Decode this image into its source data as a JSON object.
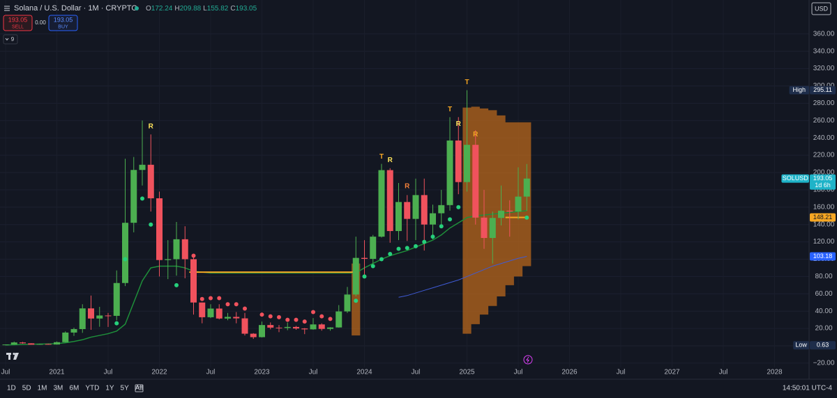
{
  "header": {
    "title": "Solana / U.S. Dollar · 1M · CRYPTO",
    "ohlc": [
      {
        "k": "O",
        "v": "172.24"
      },
      {
        "k": "H",
        "v": "209.88"
      },
      {
        "k": "L",
        "v": "155.82"
      },
      {
        "k": "C",
        "v": "193.05"
      }
    ],
    "sell_price": "193.05",
    "sell": "SELL",
    "spread": "0.00",
    "buy_price": "193.05",
    "buy": "BUY",
    "indicators_count": "9",
    "currency": "USD"
  },
  "toolbar": {
    "ranges": [
      "1D",
      "5D",
      "1M",
      "3M",
      "6M",
      "YTD",
      "1Y",
      "5Y",
      "All"
    ],
    "clock": "14:50:01 UTC-4"
  },
  "chart_data": {
    "type": "candlestick",
    "x": [
      "2020-07",
      "2020-08",
      "2020-09",
      "2020-10",
      "2020-11",
      "2020-12",
      "2021-01",
      "2021-02",
      "2021-03",
      "2021-04",
      "2021-05",
      "2021-06",
      "2021-07",
      "2021-08",
      "2021-09",
      "2021-10",
      "2021-11",
      "2021-12",
      "2022-01",
      "2022-02",
      "2022-03",
      "2022-04",
      "2022-05",
      "2022-06",
      "2022-07",
      "2022-08",
      "2022-09",
      "2022-10",
      "2022-11",
      "2022-12",
      "2023-01",
      "2023-02",
      "2023-03",
      "2023-04",
      "2023-05",
      "2023-06",
      "2023-07",
      "2023-08",
      "2023-09",
      "2023-10",
      "2023-11",
      "2023-12",
      "2024-01",
      "2024-02",
      "2024-03",
      "2024-04",
      "2024-05",
      "2024-06",
      "2024-07",
      "2024-08",
      "2024-09",
      "2024-10",
      "2024-11",
      "2024-12",
      "2025-01",
      "2025-02",
      "2025-03",
      "2025-04",
      "2025-05",
      "2025-06",
      "2025-07",
      "2025-08"
    ],
    "open": [
      1.3,
      1.5,
      3.9,
      2.9,
      1.3,
      2.1,
      1.5,
      4.2,
      15.3,
      19.3,
      43.2,
      31.5,
      35,
      34.6,
      72.5,
      142,
      203,
      209,
      170.3,
      99,
      100,
      123,
      100,
      50,
      33,
      43,
      31.5,
      33.4,
      31.7,
      14,
      10,
      24,
      21,
      20.6,
      21.8,
      20,
      19,
      24.7,
      19.5,
      21.2,
      39.7,
      59.2,
      101.5,
      100.4,
      126,
      202.8,
      132.5,
      166,
      146.5,
      174,
      140,
      153,
      162.4,
      237,
      189,
      232,
      148,
      124.5,
      147.6,
      156,
      155,
      172.24
    ],
    "high": [
      1.6,
      4.9,
      4.5,
      3.0,
      2.5,
      2.5,
      5.0,
      16.7,
      21,
      48,
      58,
      45,
      38,
      87,
      216,
      218,
      260,
      244,
      178,
      122,
      143,
      138,
      104,
      50,
      48,
      48,
      38,
      39,
      38,
      14.6,
      28,
      27,
      24,
      26.9,
      23,
      20.5,
      32,
      26,
      21.5,
      47,
      68,
      126,
      122,
      128,
      210,
      205,
      188,
      174,
      193,
      193,
      163,
      180,
      264,
      264,
      295.11,
      249,
      180,
      155,
      185,
      168,
      206,
      209.88
    ],
    "low": [
      0.63,
      1.4,
      2.4,
      1.2,
      1.2,
      1.4,
      1.4,
      4.0,
      11.5,
      15,
      18.5,
      22,
      21.8,
      29.3,
      69,
      131,
      185,
      155,
      80,
      77,
      81,
      78,
      36,
      26,
      32,
      30.5,
      29.5,
      26,
      12,
      8,
      9.6,
      19,
      15.8,
      18,
      18.5,
      13.5,
      18.6,
      17.5,
      17.5,
      21,
      38,
      57,
      79,
      95,
      125,
      119,
      122,
      121,
      122,
      110,
      123,
      140,
      156,
      175,
      178,
      140,
      112,
      95,
      139,
      126,
      146,
      155.82
    ],
    "close": [
      1.5,
      3.9,
      2.9,
      1.3,
      2.1,
      1.5,
      4.2,
      15.3,
      19.3,
      43.2,
      31.5,
      35,
      34.6,
      72.5,
      142,
      203,
      209,
      170.3,
      99,
      100,
      123,
      100,
      50,
      33,
      43,
      31.5,
      33.4,
      31.7,
      14,
      10,
      24,
      21,
      20.6,
      21.8,
      20,
      19,
      24.7,
      19.5,
      21.2,
      39.7,
      59.2,
      101.5,
      100.4,
      126,
      202.8,
      132.5,
      166,
      146.5,
      174,
      140,
      153,
      162.4,
      237,
      189,
      232,
      148,
      124.5,
      147.6,
      156,
      155,
      172.24,
      193.05
    ],
    "up_color": "#4caf50",
    "down_color": "#f0525d",
    "ma": {
      "color": "#1e8f3a",
      "values": [
        1,
        1.2,
        1.5,
        1.8,
        2,
        2.2,
        2.5,
        3.5,
        5,
        7,
        10,
        12,
        14,
        17,
        25,
        50,
        75,
        90,
        92,
        92,
        92,
        90,
        86,
        85,
        84,
        84,
        84,
        84,
        84,
        84,
        84,
        84,
        84,
        84,
        84,
        84,
        84,
        84,
        84,
        84,
        84,
        84,
        90,
        95,
        100,
        104,
        107,
        110,
        114,
        118,
        122,
        128,
        136,
        142,
        148,
        150,
        151,
        152,
        153,
        154,
        155,
        156
      ]
    },
    "dots": {
      "up_color": "#26d07c",
      "down_color": "#f0525d",
      "values": [
        null,
        null,
        null,
        null,
        null,
        null,
        null,
        null,
        null,
        null,
        null,
        null,
        null,
        26,
        100,
        null,
        170,
        140,
        null,
        null,
        70,
        null,
        104,
        54,
        55,
        55,
        48,
        48,
        43,
        null,
        36,
        34,
        33,
        30,
        30,
        28,
        39,
        34,
        31,
        null,
        null,
        52,
        80,
        92,
        100,
        106,
        112,
        113,
        115,
        120,
        126,
        138,
        146,
        160,
        null,
        null,
        null,
        null,
        null,
        null,
        null,
        148
      ]
    },
    "band": {
      "color": "#b8671c",
      "x": [
        "2023-12",
        "2024-01",
        "2024-02",
        "2024-03",
        "2024-04",
        "2024-05",
        "2024-06",
        "2024-07",
        "2024-08",
        "2024-09",
        "2024-10",
        "2024-11",
        "2024-12",
        "2025-01",
        "2025-02",
        "2025-03",
        "2025-04",
        "2025-05",
        "2025-06",
        "2025-07",
        "2025-08"
      ],
      "upper": [
        95,
        null,
        null,
        null,
        null,
        null,
        null,
        null,
        null,
        null,
        null,
        null,
        null,
        275,
        276,
        274,
        272,
        266,
        258,
        258,
        258
      ],
      "lower": [
        12,
        null,
        null,
        null,
        null,
        null,
        null,
        null,
        null,
        null,
        null,
        null,
        null,
        14,
        25,
        36,
        46,
        57,
        70,
        80,
        92
      ]
    },
    "trend": {
      "color": "#3f5bd6",
      "x": [
        "2024-05",
        "2024-06",
        "2024-07",
        "2024-08",
        "2024-09",
        "2024-10",
        "2024-11",
        "2024-12",
        "2025-01",
        "2025-02",
        "2025-03",
        "2025-04",
        "2025-05",
        "2025-06",
        "2025-07",
        "2025-08"
      ],
      "values": [
        56,
        58,
        61,
        64,
        67,
        70,
        73,
        76,
        80,
        84,
        88,
        92,
        95,
        98,
        101,
        103.18
      ]
    },
    "levels": [
      {
        "value": 85,
        "from": "2022-05",
        "to": "2023-12",
        "color": "#f5a623"
      },
      {
        "value": 148.21,
        "from": "2025-06",
        "to": "2025-08",
        "color": "#f5a623"
      }
    ],
    "annotations": [
      {
        "text": "R",
        "x": "2021-12",
        "y": 253,
        "color": "#ffe45c"
      },
      {
        "text": "T",
        "x": "2024-03",
        "y": 218,
        "color": "#f5a623"
      },
      {
        "text": "R",
        "x": "2024-04",
        "y": 214,
        "color": "#ffe45c"
      },
      {
        "text": "R",
        "x": "2024-06",
        "y": 184,
        "color": "#f5813a"
      },
      {
        "text": "T",
        "x": "2024-11",
        "y": 273,
        "color": "#f5a623"
      },
      {
        "text": "R",
        "x": "2024-12",
        "y": 256,
        "color": "#ffe45c"
      },
      {
        "text": "T",
        "x": "2025-01",
        "y": 304,
        "color": "#f5a623"
      },
      {
        "text": "R",
        "x": "2025-02",
        "y": 244,
        "color": "#f5a623"
      }
    ],
    "markers": [
      {
        "label": "High",
        "value": 295.11,
        "color": "#1e2d4a",
        "text_color": "#ffffff"
      },
      {
        "label": "SOLUSD",
        "value": 193.05,
        "extra": "1d 6h",
        "color": "#1fb3c8",
        "text_color": "#ffffff"
      },
      {
        "value": 148.21,
        "color": "#f5a623",
        "text_color": "#131722"
      },
      {
        "value": 103.18,
        "color": "#2962ff",
        "text_color": "#ffffff"
      },
      {
        "label": "Low",
        "value": 0.63,
        "color": "#1e2d4a",
        "text_color": "#ffffff"
      }
    ],
    "xlim": [
      "2020-07",
      "2028-04"
    ],
    "xticks": [
      {
        "value": "2020-07",
        "label": "Jul"
      },
      {
        "value": "2021-01",
        "label": "2021"
      },
      {
        "value": "2021-07",
        "label": "Jul"
      },
      {
        "value": "2022-01",
        "label": "2022"
      },
      {
        "value": "2022-07",
        "label": "Jul"
      },
      {
        "value": "2023-01",
        "label": "2023"
      },
      {
        "value": "2023-07",
        "label": "Jul"
      },
      {
        "value": "2024-01",
        "label": "2024"
      },
      {
        "value": "2024-07",
        "label": "Jul"
      },
      {
        "value": "2025-01",
        "label": "2025"
      },
      {
        "value": "2025-07",
        "label": "Jul"
      },
      {
        "value": "2026-01",
        "label": "2026"
      },
      {
        "value": "2026-07",
        "label": "Jul"
      },
      {
        "value": "2027-01",
        "label": "2027"
      },
      {
        "value": "2027-07",
        "label": "Jul"
      },
      {
        "value": "2028-01",
        "label": "2028"
      }
    ],
    "ylim": [
      -26.5,
      375.1
    ],
    "yticks": [
      {
        "value": 360,
        "label": "360.00"
      },
      {
        "value": 340,
        "label": "340.00"
      },
      {
        "value": 320,
        "label": "320.00"
      },
      {
        "value": 300,
        "label": "300.00"
      },
      {
        "value": 280,
        "label": "280.00"
      },
      {
        "value": 260,
        "label": "260.00"
      },
      {
        "value": 240,
        "label": "240.00"
      },
      {
        "value": 220,
        "label": "220.00"
      },
      {
        "value": 200,
        "label": "200.00"
      },
      {
        "value": 180,
        "label": "180.00"
      },
      {
        "value": 160,
        "label": "160.00"
      },
      {
        "value": 140,
        "label": "140.00"
      },
      {
        "value": 120,
        "label": "120.00"
      },
      {
        "value": 100,
        "label": "100.00"
      },
      {
        "value": 80,
        "label": "80.00"
      },
      {
        "value": 60,
        "label": "60.00"
      },
      {
        "value": 40,
        "label": "40.00"
      },
      {
        "value": 20,
        "label": "20.00"
      },
      {
        "value": 0,
        "label": "0.00"
      },
      {
        "value": -20,
        "label": "−20.00"
      }
    ],
    "grid": true
  }
}
